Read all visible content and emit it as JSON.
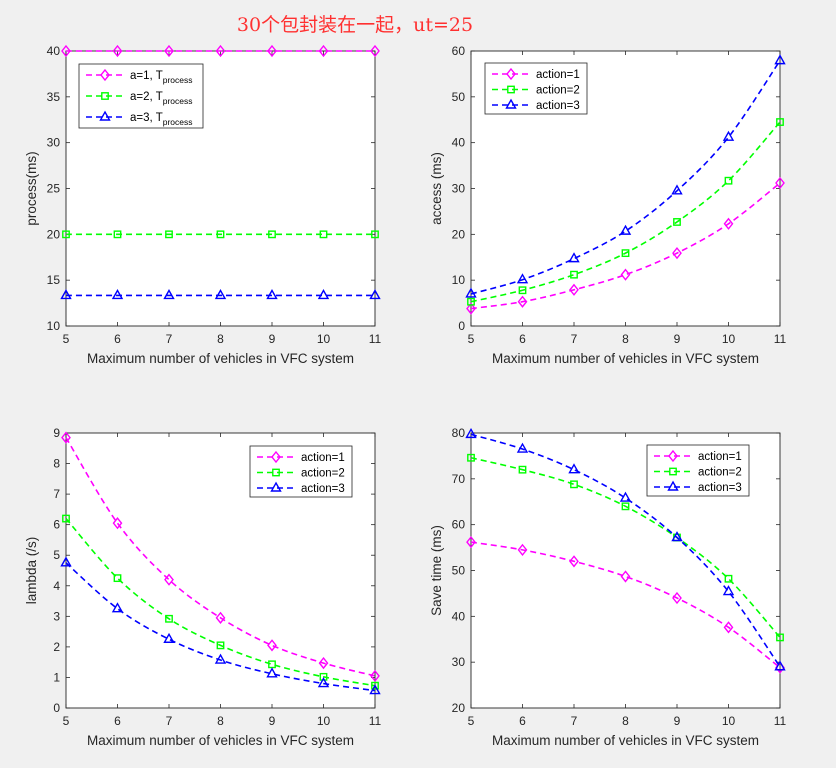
{
  "figure": {
    "suptitle": "30个包封装在一起，ut=25",
    "background": "#f0f0f0"
  },
  "chart_data": [
    {
      "type": "line",
      "xlabel": "Maximum number of vehicles in VFC system",
      "ylabel": "process(ms)",
      "x": [
        5,
        6,
        7,
        8,
        9,
        10,
        11
      ],
      "xlim": [
        5,
        11
      ],
      "ylim": [
        10,
        40
      ],
      "yticks": [
        10,
        15,
        20,
        25,
        30,
        35,
        40
      ],
      "legend": "top-left",
      "series": [
        {
          "name": "a=1, T",
          "sub": "process",
          "color": "#ff00ff",
          "marker": "diamond",
          "values": [
            40,
            40,
            40,
            40,
            40,
            40,
            40
          ]
        },
        {
          "name": "a=2, T",
          "sub": "process",
          "color": "#00ff00",
          "marker": "square",
          "values": [
            20,
            20,
            20,
            20,
            20,
            20,
            20
          ]
        },
        {
          "name": "a=3, T",
          "sub": "process",
          "color": "#0000ff",
          "marker": "triangle",
          "values": [
            13.33,
            13.33,
            13.33,
            13.33,
            13.33,
            13.33,
            13.33
          ]
        }
      ]
    },
    {
      "type": "line",
      "xlabel": "Maximum number of vehicles in VFC system",
      "ylabel": "access (ms)",
      "x": [
        5,
        6,
        7,
        8,
        9,
        10,
        11
      ],
      "xlim": [
        5,
        11
      ],
      "ylim": [
        0,
        60
      ],
      "yticks": [
        0,
        10,
        20,
        30,
        40,
        50,
        60
      ],
      "legend": "top-left",
      "series": [
        {
          "name": "action=1",
          "color": "#ff00ff",
          "marker": "diamond",
          "values": [
            3.8,
            5.3,
            7.9,
            11.2,
            15.9,
            22.3,
            31.2
          ]
        },
        {
          "name": "action=2",
          "color": "#00ff00",
          "marker": "square",
          "values": [
            5.3,
            7.8,
            11.2,
            15.9,
            22.7,
            31.7,
            44.5
          ]
        },
        {
          "name": "action=3",
          "color": "#0000ff",
          "marker": "triangle",
          "values": [
            7.0,
            10.1,
            14.7,
            20.7,
            29.5,
            41.2,
            57.9
          ]
        }
      ]
    },
    {
      "type": "line",
      "xlabel": "Maximum number of vehicles in VFC system",
      "ylabel": "lambda (/s)",
      "x": [
        5,
        6,
        7,
        8,
        9,
        10,
        11
      ],
      "xlim": [
        5,
        11
      ],
      "ylim": [
        0,
        9
      ],
      "yticks": [
        0,
        1,
        2,
        3,
        4,
        5,
        6,
        7,
        8,
        9
      ],
      "legend": "top-right",
      "series": [
        {
          "name": "action=1",
          "color": "#ff00ff",
          "marker": "diamond",
          "values": [
            8.85,
            6.05,
            4.2,
            2.95,
            2.05,
            1.47,
            1.05
          ]
        },
        {
          "name": "action=2",
          "color": "#00ff00",
          "marker": "square",
          "values": [
            6.2,
            4.25,
            2.92,
            2.05,
            1.43,
            1.02,
            0.73
          ]
        },
        {
          "name": "action=3",
          "color": "#0000ff",
          "marker": "triangle",
          "values": [
            4.75,
            3.25,
            2.25,
            1.57,
            1.12,
            0.8,
            0.57
          ]
        }
      ]
    },
    {
      "type": "line",
      "xlabel": "Maximum number of vehicles in VFC system",
      "ylabel": "Save time (ms)",
      "x": [
        5,
        6,
        7,
        8,
        9,
        10,
        11
      ],
      "xlim": [
        5,
        11
      ],
      "ylim": [
        20,
        80
      ],
      "yticks": [
        20,
        30,
        40,
        50,
        60,
        70,
        80
      ],
      "legend": "top-right",
      "series": [
        {
          "name": "action=1",
          "color": "#ff00ff",
          "marker": "diamond",
          "values": [
            56.2,
            54.5,
            52.0,
            48.7,
            44.0,
            37.6,
            28.8
          ]
        },
        {
          "name": "action=2",
          "color": "#00ff00",
          "marker": "square",
          "values": [
            74.6,
            72.0,
            68.8,
            64.0,
            57.2,
            48.2,
            35.4
          ]
        },
        {
          "name": "action=3",
          "color": "#0000ff",
          "marker": "triangle",
          "values": [
            79.7,
            76.5,
            72.0,
            65.8,
            57.2,
            45.4,
            29.0
          ]
        }
      ]
    }
  ]
}
